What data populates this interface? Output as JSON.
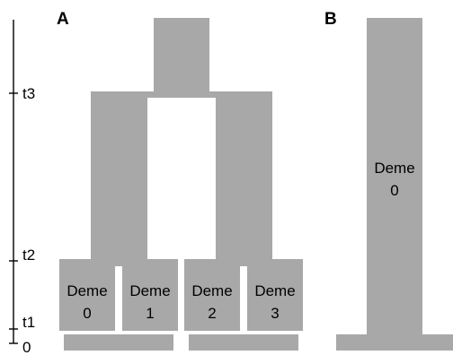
{
  "colors": {
    "block": "#a8a8a8",
    "axis": "#000000",
    "text": "#000000",
    "background": "#ffffff"
  },
  "time_axis": {
    "ticks": [
      {
        "id": "t3",
        "label": "t3"
      },
      {
        "id": "t2",
        "label": "t2"
      },
      {
        "id": "t1",
        "label": "t1"
      },
      {
        "id": "0",
        "label": "0"
      }
    ]
  },
  "panels": [
    {
      "id": "A",
      "label": "A",
      "demes": [
        {
          "name": "Deme",
          "index": "0"
        },
        {
          "name": "Deme",
          "index": "1"
        },
        {
          "name": "Deme",
          "index": "2"
        },
        {
          "name": "Deme",
          "index": "3"
        }
      ]
    },
    {
      "id": "B",
      "label": "B",
      "demes": [
        {
          "name": "Deme",
          "index": "0"
        }
      ]
    }
  ]
}
